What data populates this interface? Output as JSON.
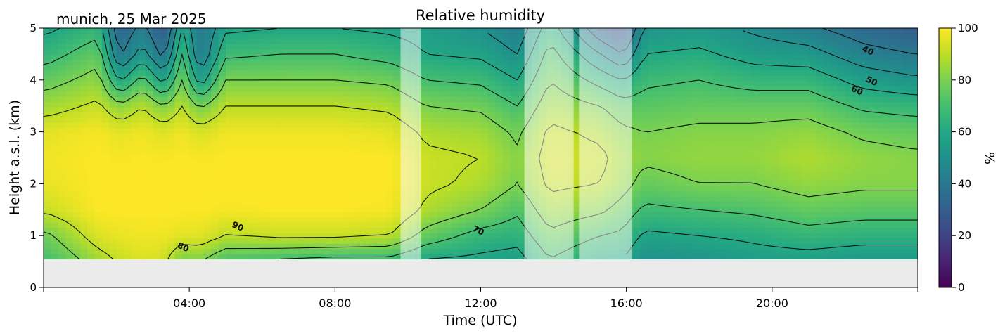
{
  "header": {
    "location_date": "munich, 25 Mar 2025"
  },
  "chart_data": {
    "type": "heatmap",
    "title": "Relative humidity",
    "xlabel": "Time (UTC)",
    "ylabel": "Height a.s.l. (km)",
    "xlim_hours": [
      0,
      24
    ],
    "ylim_km": [
      0,
      5
    ],
    "x_ticks": [
      {
        "value": 4,
        "label": "04:00"
      },
      {
        "value": 8,
        "label": "08:00"
      },
      {
        "value": 12,
        "label": "12:00"
      },
      {
        "value": 16,
        "label": "16:00"
      },
      {
        "value": 20,
        "label": "20:00"
      }
    ],
    "y_ticks": [
      0,
      1,
      2,
      3,
      4,
      5
    ],
    "data_min_height_km": 0.55,
    "no_data_color": "#ebebeb",
    "colormap": "viridis",
    "colorbar": {
      "label": "%",
      "range": [
        0,
        100
      ],
      "ticks": [
        0,
        20,
        40,
        60,
        80,
        100
      ]
    },
    "contour_labels": [
      {
        "text": "90",
        "time_h": 5.3,
        "height_km": 1.13
      },
      {
        "text": "80",
        "time_h": 3.8,
        "height_km": 0.73
      },
      {
        "text": "70",
        "time_h": 11.9,
        "height_km": 1.05
      },
      {
        "text": "40",
        "time_h": 22.6,
        "height_km": 4.52
      },
      {
        "text": "50",
        "time_h": 22.7,
        "height_km": 3.93
      },
      {
        "text": "60",
        "time_h": 22.3,
        "height_km": 3.75
      }
    ],
    "masked_intervals_h": [
      [
        9.8,
        10.35
      ],
      [
        13.2,
        14.55
      ],
      [
        14.7,
        16.15
      ]
    ],
    "profiles": [
      {
        "t": 0.1,
        "rh": [
          70,
          78,
          92,
          97,
          98,
          96,
          86,
          76,
          66,
          58
        ]
      },
      {
        "t": 1.5,
        "rh": [
          86,
          95,
          100,
          100,
          100,
          99,
          92,
          84,
          76,
          66
        ]
      },
      {
        "t": 2.1,
        "rh": [
          92,
          97,
          100,
          100,
          99,
          96,
          82,
          58,
          38,
          30
        ]
      },
      {
        "t": 2.7,
        "rh": [
          95,
          98,
          100,
          100,
          100,
          98,
          90,
          74,
          55,
          44
        ]
      },
      {
        "t": 3.3,
        "rh": [
          93,
          98,
          100,
          100,
          99,
          95,
          80,
          56,
          36,
          26
        ]
      },
      {
        "t": 3.8,
        "rh": [
          80,
          96,
          100,
          100,
          100,
          98,
          90,
          80,
          70,
          60
        ]
      },
      {
        "t": 4.3,
        "rh": [
          82,
          96,
          100,
          100,
          99,
          94,
          78,
          54,
          40,
          38
        ]
      },
      {
        "t": 5.0,
        "rh": [
          72,
          90,
          99,
          100,
          100,
          98,
          90,
          80,
          68,
          58
        ]
      },
      {
        "t": 6.5,
        "rh": [
          70,
          92,
          100,
          100,
          100,
          98,
          90,
          80,
          70,
          60
        ]
      },
      {
        "t": 8.0,
        "rh": [
          68,
          92,
          100,
          100,
          100,
          98,
          90,
          80,
          70,
          60
        ]
      },
      {
        "t": 9.5,
        "rh": [
          68,
          90,
          99,
          100,
          100,
          96,
          88,
          78,
          66,
          58
        ]
      },
      {
        "t": 10.5,
        "rh": [
          60,
          76,
          88,
          92,
          92,
          88,
          80,
          70,
          60,
          56
        ]
      },
      {
        "t": 12.0,
        "rh": [
          58,
          66,
          80,
          88,
          90,
          86,
          78,
          68,
          58,
          50
        ]
      },
      {
        "t": 13.0,
        "rh": [
          56,
          64,
          72,
          80,
          82,
          78,
          70,
          60,
          50,
          42
        ]
      },
      {
        "t": 13.9,
        "rh": [
          70,
          78,
          86,
          92,
          94,
          92,
          86,
          80,
          74,
          66
        ]
      },
      {
        "t": 15.3,
        "rh": [
          60,
          70,
          82,
          90,
          92,
          88,
          80,
          66,
          50,
          30
        ]
      },
      {
        "t": 15.9,
        "rh": [
          60,
          68,
          76,
          84,
          86,
          82,
          74,
          60,
          40,
          22
        ]
      },
      {
        "t": 16.5,
        "rh": [
          50,
          58,
          68,
          76,
          82,
          80,
          74,
          68,
          60,
          52
        ]
      },
      {
        "t": 18.0,
        "rh": [
          52,
          60,
          70,
          80,
          84,
          82,
          76,
          70,
          62,
          54
        ]
      },
      {
        "t": 19.5,
        "rh": [
          56,
          62,
          72,
          80,
          84,
          82,
          76,
          66,
          56,
          48
        ]
      },
      {
        "t": 21.0,
        "rh": [
          56,
          66,
          76,
          84,
          88,
          84,
          76,
          66,
          54,
          42
        ]
      },
      {
        "t": 22.5,
        "rh": [
          54,
          64,
          74,
          82,
          84,
          78,
          68,
          56,
          44,
          34
        ]
      },
      {
        "t": 23.9,
        "rh": [
          54,
          64,
          74,
          82,
          82,
          76,
          66,
          52,
          40,
          30
        ]
      }
    ],
    "profile_heights_km": [
      0.55,
      1.0,
      1.5,
      2.0,
      2.5,
      3.0,
      3.5,
      4.0,
      4.5,
      5.0
    ]
  }
}
